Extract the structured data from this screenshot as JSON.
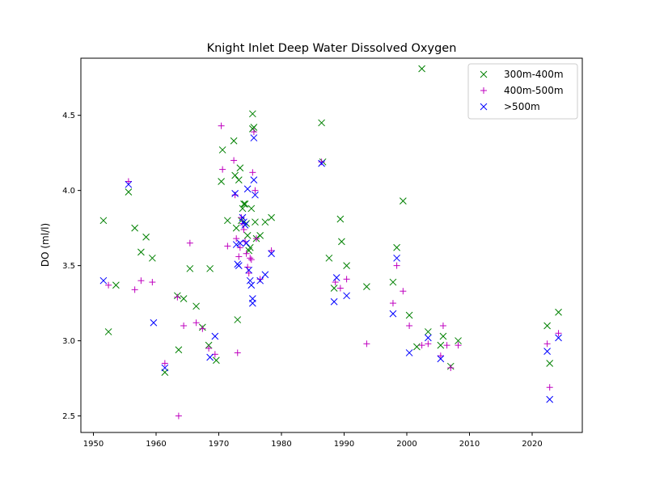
{
  "chart_data": {
    "type": "scatter",
    "title": "Knight Inlet Deep Water Dissolved Oxygen",
    "xlabel": "",
    "ylabel": "DO (ml/l)",
    "xlim": [
      1948,
      2028
    ],
    "ylim": [
      2.39,
      4.88
    ],
    "xticks": [
      1950,
      1960,
      1970,
      1980,
      1990,
      2000,
      2010,
      2020
    ],
    "yticks": [
      2.5,
      3.0,
      3.5,
      4.0,
      4.5
    ],
    "ytick_labels": [
      "2.5",
      "3.0",
      "3.5",
      "4.0",
      "4.5"
    ],
    "grid": false,
    "legend_position": "top-right",
    "series": [
      {
        "name": "300m-400m",
        "color": "#008000",
        "marker": "x",
        "points": [
          [
            1951.6,
            3.8
          ],
          [
            1952.4,
            3.06
          ],
          [
            1953.6,
            3.37
          ],
          [
            1955.6,
            3.99
          ],
          [
            1956.6,
            3.75
          ],
          [
            1957.6,
            3.59
          ],
          [
            1958.4,
            3.69
          ],
          [
            1959.4,
            3.55
          ],
          [
            1961.4,
            2.79
          ],
          [
            1963.4,
            3.3
          ],
          [
            1963.6,
            2.94
          ],
          [
            1964.4,
            3.28
          ],
          [
            1965.4,
            3.48
          ],
          [
            1966.4,
            3.23
          ],
          [
            1967.4,
            3.09
          ],
          [
            1968.4,
            2.97
          ],
          [
            1968.6,
            3.48
          ],
          [
            1969.6,
            2.87
          ],
          [
            1970.4,
            4.06
          ],
          [
            1970.6,
            4.27
          ],
          [
            1971.4,
            3.8
          ],
          [
            1972.4,
            4.33
          ],
          [
            1972.6,
            4.1
          ],
          [
            1972.8,
            3.75
          ],
          [
            1973.0,
            3.14
          ],
          [
            1973.2,
            4.07
          ],
          [
            1973.4,
            4.15
          ],
          [
            1973.6,
            3.8
          ],
          [
            1973.8,
            3.88
          ],
          [
            1974.0,
            3.91
          ],
          [
            1974.2,
            3.91
          ],
          [
            1974.4,
            3.78
          ],
          [
            1974.6,
            3.7
          ],
          [
            1974.8,
            3.6
          ],
          [
            1975.0,
            3.62
          ],
          [
            1975.2,
            3.88
          ],
          [
            1975.4,
            4.41
          ],
          [
            1975.4,
            4.51
          ],
          [
            1975.6,
            4.42
          ],
          [
            1975.8,
            3.79
          ],
          [
            1976.0,
            3.68
          ],
          [
            1976.6,
            3.7
          ],
          [
            1977.4,
            3.79
          ],
          [
            1978.4,
            3.82
          ],
          [
            1986.4,
            4.45
          ],
          [
            1986.6,
            4.19
          ],
          [
            1987.6,
            3.55
          ],
          [
            1988.4,
            3.35
          ],
          [
            1989.4,
            3.81
          ],
          [
            1989.6,
            3.66
          ],
          [
            1990.4,
            3.5
          ],
          [
            1993.6,
            3.36
          ],
          [
            1997.8,
            3.39
          ],
          [
            1998.4,
            3.62
          ],
          [
            1999.4,
            3.93
          ],
          [
            2000.4,
            3.17
          ],
          [
            2001.6,
            2.96
          ],
          [
            2002.4,
            4.81
          ],
          [
            2003.4,
            3.06
          ],
          [
            2005.4,
            2.97
          ],
          [
            2005.8,
            3.03
          ],
          [
            2007.0,
            2.83
          ],
          [
            2008.2,
            3.0
          ],
          [
            2022.4,
            3.1
          ],
          [
            2022.8,
            2.85
          ],
          [
            2024.2,
            3.19
          ]
        ]
      },
      {
        "name": "400m-500m",
        "color": "#bf00bf",
        "marker": "+",
        "points": [
          [
            1952.4,
            3.37
          ],
          [
            1955.6,
            4.06
          ],
          [
            1956.6,
            3.34
          ],
          [
            1957.6,
            3.4
          ],
          [
            1959.4,
            3.39
          ],
          [
            1961.4,
            2.85
          ],
          [
            1963.4,
            3.29
          ],
          [
            1963.6,
            2.5
          ],
          [
            1964.4,
            3.1
          ],
          [
            1965.4,
            3.65
          ],
          [
            1966.4,
            3.12
          ],
          [
            1967.4,
            3.08
          ],
          [
            1968.4,
            2.95
          ],
          [
            1969.4,
            2.91
          ],
          [
            1970.4,
            4.43
          ],
          [
            1970.6,
            4.14
          ],
          [
            1971.4,
            3.63
          ],
          [
            1972.4,
            4.2
          ],
          [
            1972.6,
            3.97
          ],
          [
            1972.8,
            3.68
          ],
          [
            1973.0,
            2.92
          ],
          [
            1973.2,
            3.56
          ],
          [
            1973.4,
            3.62
          ],
          [
            1973.6,
            3.82
          ],
          [
            1973.8,
            3.78
          ],
          [
            1974.0,
            3.74
          ],
          [
            1974.2,
            3.66
          ],
          [
            1974.4,
            3.58
          ],
          [
            1974.6,
            3.49
          ],
          [
            1974.8,
            3.45
          ],
          [
            1975.0,
            3.55
          ],
          [
            1975.2,
            3.54
          ],
          [
            1975.4,
            4.12
          ],
          [
            1975.6,
            4.39
          ],
          [
            1975.8,
            4.0
          ],
          [
            1976.0,
            3.68
          ],
          [
            1976.6,
            3.41
          ],
          [
            1978.4,
            3.6
          ],
          [
            1986.4,
            4.19
          ],
          [
            1988.6,
            3.39
          ],
          [
            1989.4,
            3.35
          ],
          [
            1990.4,
            3.41
          ],
          [
            1993.6,
            2.98
          ],
          [
            1997.8,
            3.25
          ],
          [
            1998.4,
            3.5
          ],
          [
            1999.4,
            3.33
          ],
          [
            2000.4,
            3.1
          ],
          [
            2002.4,
            2.97
          ],
          [
            2003.4,
            2.98
          ],
          [
            2005.4,
            2.9
          ],
          [
            2005.8,
            3.1
          ],
          [
            2006.4,
            2.97
          ],
          [
            2007.0,
            2.82
          ],
          [
            2008.2,
            2.97
          ],
          [
            2022.4,
            2.98
          ],
          [
            2022.8,
            2.69
          ],
          [
            2024.2,
            3.05
          ]
        ]
      },
      {
        "name": ">500m",
        "color": "#0000ff",
        "marker": "x",
        "points": [
          [
            1951.6,
            3.4
          ],
          [
            1955.6,
            4.04
          ],
          [
            1959.6,
            3.12
          ],
          [
            1961.4,
            2.82
          ],
          [
            1968.6,
            2.89
          ],
          [
            1969.4,
            3.03
          ],
          [
            1972.6,
            3.98
          ],
          [
            1972.8,
            3.64
          ],
          [
            1973.0,
            3.51
          ],
          [
            1973.2,
            3.5
          ],
          [
            1973.4,
            3.65
          ],
          [
            1973.8,
            3.82
          ],
          [
            1974.0,
            3.79
          ],
          [
            1974.2,
            3.77
          ],
          [
            1974.4,
            3.65
          ],
          [
            1974.6,
            4.01
          ],
          [
            1974.8,
            3.47
          ],
          [
            1975.0,
            3.4
          ],
          [
            1975.2,
            3.37
          ],
          [
            1975.4,
            3.28
          ],
          [
            1975.4,
            3.25
          ],
          [
            1975.6,
            4.07
          ],
          [
            1975.6,
            4.35
          ],
          [
            1975.8,
            3.97
          ],
          [
            1976.6,
            3.4
          ],
          [
            1977.4,
            3.44
          ],
          [
            1978.4,
            3.58
          ],
          [
            1986.4,
            4.18
          ],
          [
            1988.4,
            3.26
          ],
          [
            1988.8,
            3.42
          ],
          [
            1990.4,
            3.3
          ],
          [
            1997.8,
            3.18
          ],
          [
            1998.4,
            3.55
          ],
          [
            2000.4,
            2.92
          ],
          [
            2003.4,
            3.02
          ],
          [
            2005.4,
            2.88
          ],
          [
            2022.4,
            2.93
          ],
          [
            2022.8,
            2.61
          ],
          [
            2024.2,
            3.02
          ]
        ]
      }
    ]
  }
}
